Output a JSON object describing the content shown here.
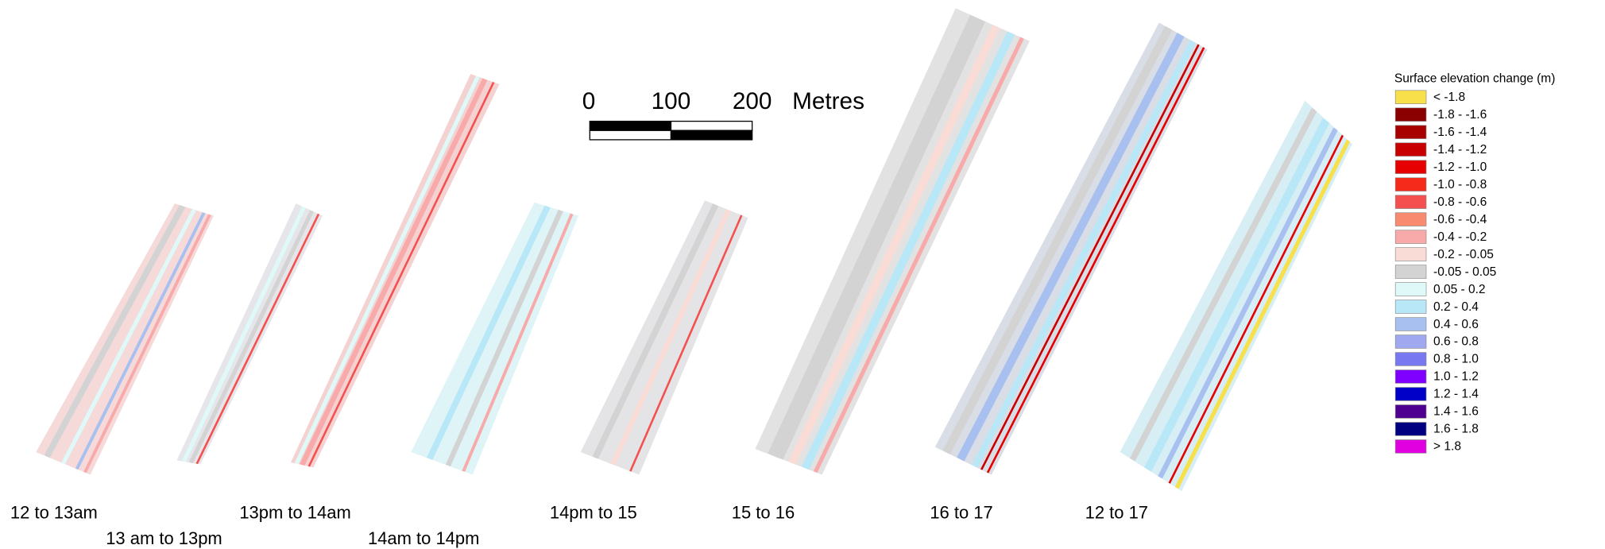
{
  "scale_bar": {
    "labels": [
      "0",
      "100",
      "200"
    ],
    "unit": "Metres"
  },
  "panels": [
    {
      "label": "12 to 13am"
    },
    {
      "label": "13 am to 13pm"
    },
    {
      "label": "13pm to 14am"
    },
    {
      "label": "14am to 14pm"
    },
    {
      "label": "14pm to 15"
    },
    {
      "label": "15 to 16"
    },
    {
      "label": "16 to 17"
    },
    {
      "label": "12 to 17"
    }
  ],
  "legend": {
    "title": "Surface elevation change (m)",
    "items": [
      {
        "label": "< -1.8",
        "color": "#f8e04a"
      },
      {
        "label": "-1.8 - -1.6",
        "color": "#8b0000"
      },
      {
        "label": "-1.6 - -1.4",
        "color": "#a80000"
      },
      {
        "label": "-1.4 - -1.2",
        "color": "#c80000"
      },
      {
        "label": "-1.2 - -1.0",
        "color": "#e60000"
      },
      {
        "label": "-1.0 - -0.8",
        "color": "#f52a1a"
      },
      {
        "label": "-0.8 - -0.6",
        "color": "#f55050"
      },
      {
        "label": "-0.6 - -0.4",
        "color": "#f88a70"
      },
      {
        "label": "-0.4 - -0.2",
        "color": "#f8aaaa"
      },
      {
        "label": "-0.2 - -0.05",
        "color": "#fadcd6"
      },
      {
        "label": "-0.05 - 0.05",
        "color": "#d3d3d3"
      },
      {
        "label": "0.05 - 0.2",
        "color": "#dff8f8"
      },
      {
        "label": "0.2 - 0.4",
        "color": "#b8e8f8"
      },
      {
        "label": "0.4 - 0.6",
        "color": "#a8c0f0"
      },
      {
        "label": "0.6 - 0.8",
        "color": "#a0a8f0"
      },
      {
        "label": "0.8 - 1.0",
        "color": "#7878f0"
      },
      {
        "label": "1.0 - 1.2",
        "color": "#8000ff"
      },
      {
        "label": "1.2 - 1.4",
        "color": "#0000c8"
      },
      {
        "label": "1.4 - 1.6",
        "color": "#500090"
      },
      {
        "label": "1.6 - 1.8",
        "color": "#000080"
      },
      {
        "label": "> 1.8",
        "color": "#e000e0"
      }
    ]
  }
}
